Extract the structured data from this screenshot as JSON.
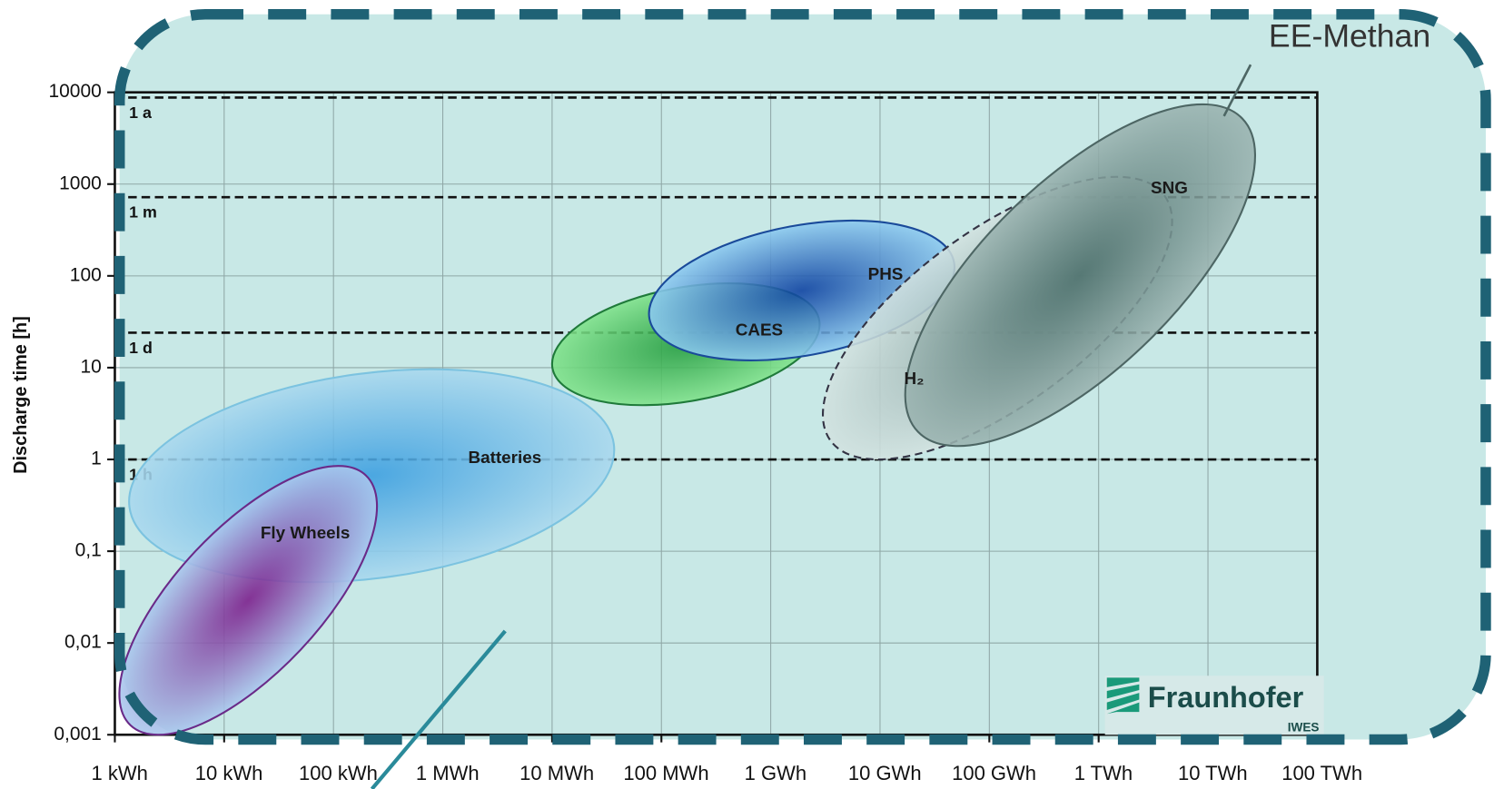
{
  "chart_data": {
    "type": "ellipse",
    "y_label": "Discharge time [h]",
    "log_x": true,
    "log_y": true,
    "grid": true,
    "xlim": [
      1,
      100000000000
    ],
    "ylim": [
      0.001,
      10000
    ],
    "xticks": [
      {
        "value": 1,
        "label": "1 kWh"
      },
      {
        "value": 10,
        "label": "10 kWh"
      },
      {
        "value": 100,
        "label": "100 kWh"
      },
      {
        "value": 1000,
        "label": "1 MWh"
      },
      {
        "value": 10000,
        "label": "10 MWh"
      },
      {
        "value": 100000,
        "label": "100 MWh"
      },
      {
        "value": 1000000,
        "label": "1 GWh"
      },
      {
        "value": 10000000,
        "label": "10 GWh"
      },
      {
        "value": 100000000,
        "label": "100 GWh"
      },
      {
        "value": 1000000000,
        "label": "1 TWh"
      },
      {
        "value": 10000000000,
        "label": "10 TWh"
      },
      {
        "value": 100000000000,
        "label": "100 TWh"
      }
    ],
    "yticks": [
      {
        "value": 0.001,
        "label": "0,001"
      },
      {
        "value": 0.01,
        "label": "0,01"
      },
      {
        "value": 0.1,
        "label": "0,1"
      },
      1,
      10,
      100,
      1000,
      10000
    ],
    "reference_lines": [
      {
        "value": 1,
        "label": "1 h"
      },
      {
        "value": 24,
        "label": "1 d"
      },
      {
        "value": 720,
        "label": "1 m"
      },
      {
        "value": 8760,
        "label": "1 a"
      }
    ],
    "series": [
      {
        "name": "Batteries",
        "color": "#3a9ee0",
        "edge_color": "#a9d8ee",
        "stroke": "#7cc3e0",
        "dashed": false,
        "xrange": [
          1.35,
          37000
        ],
        "yrange": [
          0.046,
          9.6
        ]
      },
      {
        "name": "Fly Wheels",
        "color": "#7a1a8a",
        "edge_color": "#a9c8ee",
        "stroke": "#6a2a88",
        "dashed": false,
        "xrange": [
          1.1,
          250
        ],
        "yrange": [
          0.001,
          0.85
        ]
      },
      {
        "name": "CAES",
        "color": "#1f9a3a",
        "edge_color": "#7fe28a",
        "stroke": "#1f7a3a",
        "dashed": false,
        "xrange": [
          10000,
          2800000
        ],
        "yrange": [
          3.9,
          83
        ]
      },
      {
        "name": "PHS",
        "color": "#0a3fa0",
        "edge_color": "#8ccaf0",
        "stroke": "#1a4a9a",
        "dashed": false,
        "xrange": [
          77000,
          48000000
        ],
        "yrange": [
          12,
          400
        ]
      },
      {
        "name": "H₂",
        "color": "#8fa7a5",
        "edge_color": "#d2e2e0",
        "stroke": "#334",
        "dashed": true,
        "xrange": [
          3000000,
          4700000000
        ],
        "yrange": [
          1,
          1200
        ]
      },
      {
        "name": "SNG",
        "color": "#4a6e6a",
        "edge_color": "#9ab3b0",
        "stroke": "#4d6664",
        "dashed": false,
        "xrange": [
          17000000,
          27000000000
        ],
        "yrange": [
          1.4,
          7400
        ]
      }
    ],
    "annotation": "EE-Methan",
    "logo": {
      "name": "Fraunhofer",
      "sub": "IWES"
    }
  }
}
